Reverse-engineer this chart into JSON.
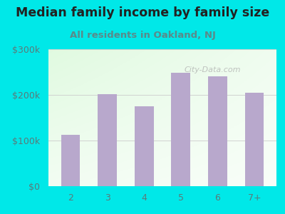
{
  "title": "Median family income by family size",
  "subtitle": "All residents in Oakland, NJ",
  "categories": [
    "2",
    "3",
    "4",
    "5",
    "6",
    "7+"
  ],
  "values": [
    113000,
    201000,
    175000,
    248000,
    240000,
    205000
  ],
  "bar_color": "#b8a8cc",
  "background_outer": "#00e8e8",
  "ylim": [
    0,
    300000
  ],
  "yticks": [
    0,
    100000,
    200000,
    300000
  ],
  "ytick_labels": [
    "$0",
    "$100k",
    "$200k",
    "$300k"
  ],
  "title_color": "#222222",
  "subtitle_color": "#5a8a8a",
  "title_fontsize": 12.5,
  "subtitle_fontsize": 9.5,
  "watermark": "City-Data.com",
  "tick_label_color": "#5a7a7a",
  "tick_fontsize": 9
}
